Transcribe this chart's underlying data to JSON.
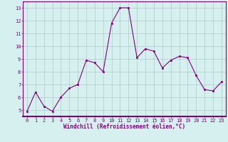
{
  "x": [
    0,
    1,
    2,
    3,
    4,
    5,
    6,
    7,
    8,
    9,
    10,
    11,
    12,
    13,
    14,
    15,
    16,
    17,
    18,
    19,
    20,
    21,
    22,
    23
  ],
  "y": [
    4.9,
    6.4,
    5.3,
    4.9,
    6.0,
    6.7,
    7.0,
    8.9,
    8.7,
    8.0,
    11.8,
    13.0,
    13.0,
    9.1,
    9.8,
    9.6,
    8.3,
    8.9,
    9.2,
    9.1,
    7.7,
    6.6,
    6.5,
    7.2
  ],
  "line_color": "#800080",
  "marker": "s",
  "marker_size": 2,
  "bg_color": "#d6f0f0",
  "grid_color": "#b0c8c8",
  "xlabel": "Windchill (Refroidissement éolien,°C)",
  "xlabel_color": "#800080",
  "tick_color": "#800080",
  "label_color": "#800080",
  "ylim": [
    4.5,
    13.5
  ],
  "xlim": [
    -0.5,
    23.5
  ],
  "yticks": [
    5,
    6,
    7,
    8,
    9,
    10,
    11,
    12,
    13
  ],
  "xticks": [
    0,
    1,
    2,
    3,
    4,
    5,
    6,
    7,
    8,
    9,
    10,
    11,
    12,
    13,
    14,
    15,
    16,
    17,
    18,
    19,
    20,
    21,
    22,
    23
  ],
  "tick_fontsize": 5.0,
  "xlabel_fontsize": 5.5,
  "spine_color": "#800080"
}
